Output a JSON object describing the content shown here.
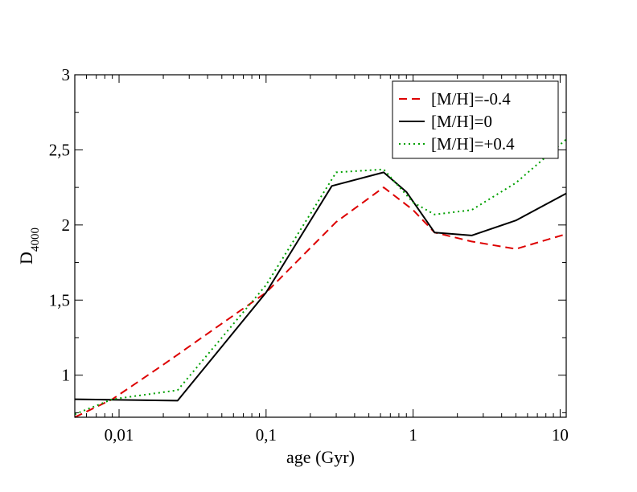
{
  "chart_data": {
    "type": "line",
    "title": "",
    "xlabel": "age (Gyr)",
    "ylabel": "D",
    "ylabel_sub": "4000",
    "xscale": "log",
    "xlim": [
      0.005,
      11
    ],
    "ylim": [
      0.72,
      3.0
    ],
    "xticks": [
      {
        "value": 0.01,
        "label": "0,01"
      },
      {
        "value": 0.1,
        "label": "0,1"
      },
      {
        "value": 1,
        "label": "1"
      },
      {
        "value": 10,
        "label": "10"
      }
    ],
    "yticks": [
      {
        "value": 1.0,
        "label": "1"
      },
      {
        "value": 1.5,
        "label": "1,5"
      },
      {
        "value": 2.0,
        "label": "2"
      },
      {
        "value": 2.5,
        "label": "2,5"
      },
      {
        "value": 3.0,
        "label": "3"
      }
    ],
    "legend_position": "top-right",
    "series": [
      {
        "name": "[M/H]=-0.4",
        "color": "#dd0000",
        "style": "dashed",
        "x": [
          0.005,
          0.009,
          0.02,
          0.1,
          0.3,
          0.63,
          1.0,
          1.4,
          2.5,
          5.0,
          11
        ],
        "y": [
          0.72,
          0.84,
          1.07,
          1.55,
          2.02,
          2.25,
          2.1,
          1.95,
          1.89,
          1.84,
          1.94
        ]
      },
      {
        "name": "[M/H]=0",
        "color": "#000000",
        "style": "solid",
        "x": [
          0.005,
          0.025,
          0.1,
          0.28,
          0.63,
          0.9,
          1.4,
          2.5,
          5.0,
          11
        ],
        "y": [
          0.84,
          0.83,
          1.55,
          2.26,
          2.35,
          2.22,
          1.95,
          1.93,
          2.03,
          2.21
        ]
      },
      {
        "name": "[M/H]=+0.4",
        "color": "#00a000",
        "style": "dotted",
        "x": [
          0.005,
          0.009,
          0.025,
          0.1,
          0.3,
          0.63,
          1.0,
          1.4,
          2.5,
          5.0,
          11
        ],
        "y": [
          0.74,
          0.84,
          0.9,
          1.6,
          2.35,
          2.37,
          2.15,
          2.07,
          2.1,
          2.28,
          2.57
        ]
      }
    ]
  }
}
